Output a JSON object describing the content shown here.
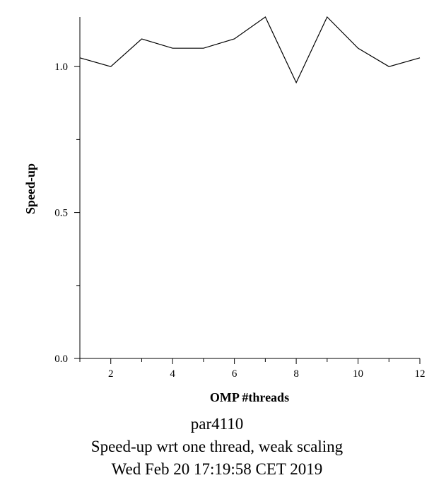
{
  "chart_data": {
    "type": "line",
    "xlabel": "OMP #threads",
    "ylabel": "Speed-up",
    "x": [
      1,
      2,
      3,
      4,
      5,
      6,
      7,
      8,
      9,
      10,
      11,
      12
    ],
    "series": [
      {
        "values": [
          1.03,
          1.0,
          1.095,
          1.063,
          1.063,
          1.095,
          1.17,
          0.945,
          1.17,
          1.063,
          1.0,
          1.03
        ]
      }
    ],
    "xlim": [
      1,
      12
    ],
    "ylim": [
      0.0,
      1.17
    ],
    "xticks": [
      2,
      4,
      6,
      8,
      10,
      12
    ],
    "yticks": [
      0.0,
      0.5,
      1.0
    ],
    "xtick_labels": [
      "2",
      "4",
      "6",
      "8",
      "10",
      "12"
    ],
    "ytick_labels": [
      "0.0",
      "0.5",
      "1.0"
    ],
    "grid": false,
    "line_color": "#000000"
  },
  "caption": {
    "line1": "par4110",
    "line2": "Speed-up wrt one thread, weak scaling",
    "line3": "Wed Feb 20 17:19:58 CET 2019"
  }
}
